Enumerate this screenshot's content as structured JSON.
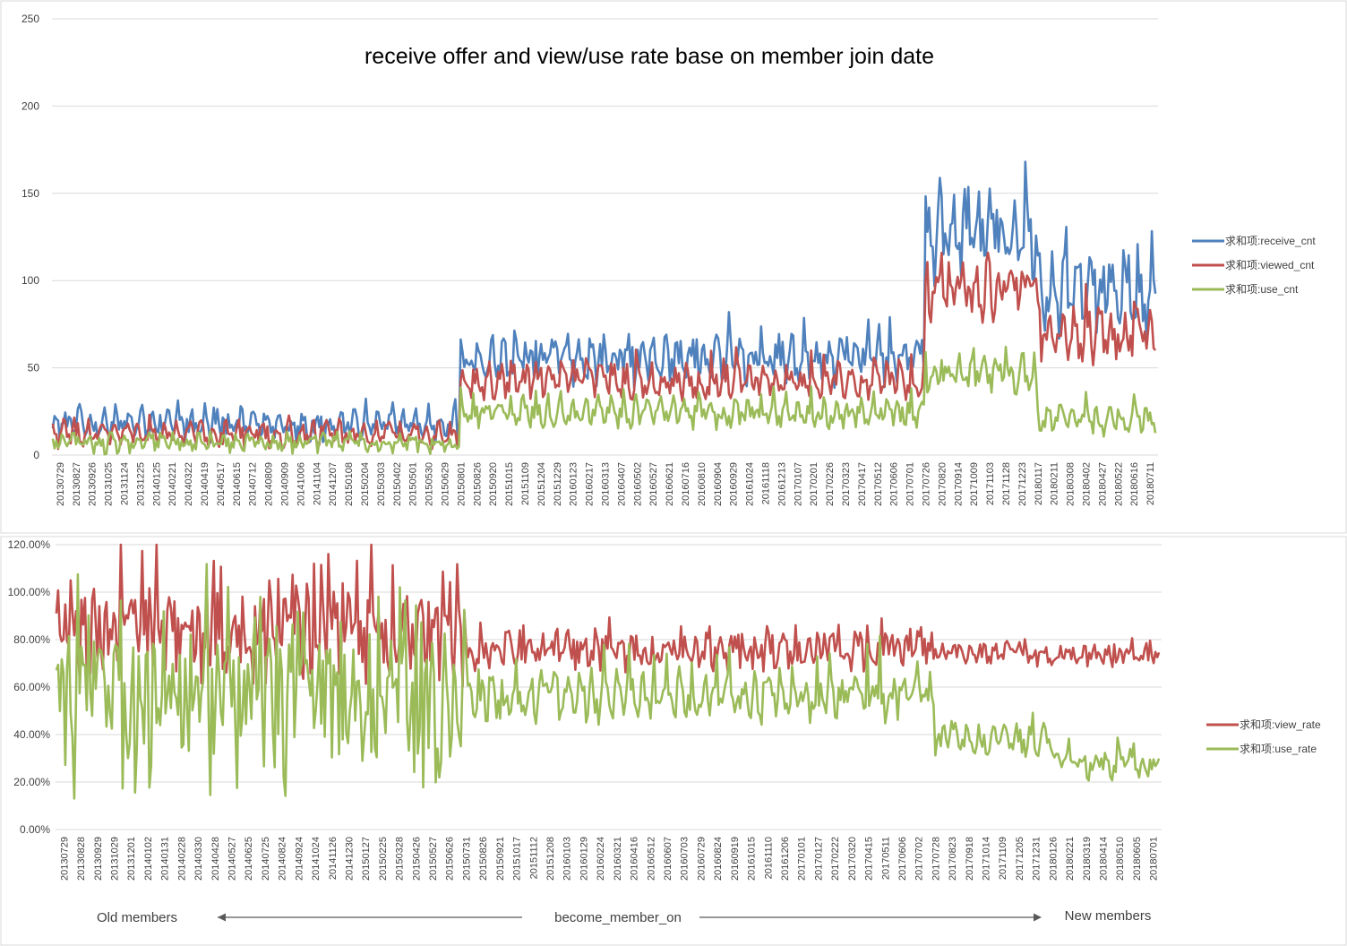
{
  "colors": {
    "receive": "#4f81bd",
    "viewed": "#c0504d",
    "use": "#9bbb59",
    "grid": "#d9d9d9",
    "text": "#404040"
  },
  "chart_data": [
    {
      "type": "line",
      "title": "receive offer and view/use rate base on member join date",
      "xlabel": "",
      "ylabel": "",
      "ylim": [
        0,
        250
      ],
      "yticks": [
        "0",
        "50",
        "100",
        "150",
        "200",
        "250"
      ],
      "grid": true,
      "legend_position": "right",
      "x_tick_labels": [
        "20130729",
        "20130827",
        "20130926",
        "20131025",
        "20131124",
        "20131225",
        "20140125",
        "20140221",
        "20140322",
        "20140419",
        "20140517",
        "20140615",
        "20140712",
        "20140809",
        "20140909",
        "20141006",
        "20141104",
        "20141207",
        "20150108",
        "20150204",
        "20150303",
        "20150402",
        "20150501",
        "20150530",
        "20150629",
        "20150801",
        "20150826",
        "20150920",
        "20151015",
        "20151109",
        "20151204",
        "20151229",
        "20160123",
        "20160217",
        "20160313",
        "20160407",
        "20160502",
        "20160527",
        "20160621",
        "20160716",
        "20160810",
        "20160904",
        "20160929",
        "20161024",
        "20161118",
        "20161213",
        "20170107",
        "20170201",
        "20170226",
        "20170323",
        "20170417",
        "20170512",
        "20170606",
        "20170701",
        "20170726",
        "20170820",
        "20170914",
        "20171009",
        "20171103",
        "20171128",
        "20171223",
        "20180117",
        "20180211",
        "20180308",
        "20180402",
        "20180427",
        "20180522",
        "20180616",
        "20180711"
      ],
      "series": [
        {
          "name": "求和项:receive_cnt",
          "color_key": "receive",
          "segments": [
            {
              "start_tick": "20130729",
              "end_tick": "20150801",
              "base": 17,
              "amplitude": 5,
              "noise": 6,
              "spike_every": 5,
              "spike": 9
            },
            {
              "start_tick": "20150801",
              "end_tick": "20170726",
              "base": 54,
              "amplitude": 7,
              "noise": 9,
              "spike_every": 6,
              "spike": 20
            },
            {
              "start_tick": "20170726",
              "end_tick": "20180117",
              "base": 125,
              "amplitude": 14,
              "noise": 16,
              "spike_every": 8,
              "spike": 45
            },
            {
              "start_tick": "20180117",
              "end_tick": "20180711",
              "base": 92,
              "amplitude": 12,
              "noise": 14,
              "spike_every": 8,
              "spike": 30
            }
          ]
        },
        {
          "name": "求和项:viewed_cnt",
          "color_key": "viewed",
          "segments": [
            {
              "start_tick": "20130729",
              "end_tick": "20150801",
              "base": 12,
              "amplitude": 4,
              "noise": 5,
              "spike_every": 6,
              "spike": 6
            },
            {
              "start_tick": "20150801",
              "end_tick": "20170726",
              "base": 42,
              "amplitude": 5,
              "noise": 7,
              "spike_every": 7,
              "spike": 12
            },
            {
              "start_tick": "20170726",
              "end_tick": "20180117",
              "base": 95,
              "amplitude": 10,
              "noise": 12,
              "spike_every": 9,
              "spike": 30
            },
            {
              "start_tick": "20180117",
              "end_tick": "20180711",
              "base": 68,
              "amplitude": 9,
              "noise": 11,
              "spike_every": 9,
              "spike": 20
            }
          ]
        },
        {
          "name": "求和项:use_cnt",
          "color_key": "use",
          "segments": [
            {
              "start_tick": "20130729",
              "end_tick": "20150801",
              "base": 7,
              "amplitude": 3,
              "noise": 4,
              "spike_every": 7,
              "spike": 5
            },
            {
              "start_tick": "20150801",
              "end_tick": "20170726",
              "base": 24,
              "amplitude": 4,
              "noise": 6,
              "spike_every": 7,
              "spike": 9
            },
            {
              "start_tick": "20170726",
              "end_tick": "20180117",
              "base": 46,
              "amplitude": 6,
              "noise": 8,
              "spike_every": 9,
              "spike": 18
            },
            {
              "start_tick": "20180117",
              "end_tick": "20180711",
              "base": 20,
              "amplitude": 4,
              "noise": 6,
              "spike_every": 9,
              "spike": 12
            }
          ]
        }
      ]
    },
    {
      "type": "line",
      "title": "",
      "xlabel": "become_member_on",
      "ylabel": "",
      "ylim": [
        0,
        1.2
      ],
      "yticks": [
        "0.00%",
        "20.00%",
        "40.00%",
        "60.00%",
        "80.00%",
        "100.00%",
        "120.00%"
      ],
      "grid": true,
      "legend_position": "right",
      "x_tick_labels": [
        "20130729",
        "20130828",
        "20130929",
        "20131029",
        "20131201",
        "20140102",
        "20140131",
        "20140228",
        "20140330",
        "20140428",
        "20140527",
        "20140625",
        "20140725",
        "20140824",
        "20140924",
        "20141024",
        "20141126",
        "20141230",
        "20150127",
        "20150225",
        "20150328",
        "20150426",
        "20150527",
        "20150626",
        "20150731",
        "20150826",
        "20150921",
        "20151017",
        "20151112",
        "20151208",
        "20160103",
        "20160129",
        "20160224",
        "20160321",
        "20160416",
        "20160512",
        "20160607",
        "20160703",
        "20160729",
        "20160824",
        "20160919",
        "20161015",
        "20161110",
        "20161206",
        "20170101",
        "20170127",
        "20170222",
        "20170320",
        "20170415",
        "20170511",
        "20170606",
        "20170702",
        "20170728",
        "20170823",
        "20170918",
        "20171014",
        "20171109",
        "20171205",
        "20171231",
        "20180126",
        "20180221",
        "20180319",
        "20180414",
        "20180510",
        "20180605",
        "20180701"
      ],
      "annotations": {
        "left": "Old members",
        "right": "New members",
        "center": "become_member_on"
      },
      "series": [
        {
          "name": "求和项:view_rate",
          "color_key": "viewed",
          "segments": [
            {
              "start_tick": "20130729",
              "end_tick": "20150731",
              "base": 0.82,
              "amplitude": 0.06,
              "noise": 0.18,
              "spike_every": 4,
              "spike": 0.3
            },
            {
              "start_tick": "20150731",
              "end_tick": "20170728",
              "base": 0.76,
              "amplitude": 0.03,
              "noise": 0.07,
              "spike_every": 8,
              "spike": 0.1
            },
            {
              "start_tick": "20170728",
              "end_tick": "20180701",
              "base": 0.74,
              "amplitude": 0.02,
              "noise": 0.04,
              "spike_every": 10,
              "spike": 0.07
            }
          ]
        },
        {
          "name": "求和项:use_rate",
          "color_key": "use",
          "segments": [
            {
              "start_tick": "20130729",
              "end_tick": "20150731",
              "base": 0.5,
              "amplitude": 0.08,
              "noise": 0.3,
              "spike_every": 3,
              "spike": 0.4
            },
            {
              "start_tick": "20150731",
              "end_tick": "20170728",
              "base": 0.56,
              "amplitude": 0.04,
              "noise": 0.08,
              "spike_every": 7,
              "spike": 0.15
            },
            {
              "start_tick": "20170728",
              "end_tick": "20180126",
              "base": 0.38,
              "amplitude": 0.03,
              "noise": 0.05,
              "spike_every": 9,
              "spike": 0.1
            },
            {
              "start_tick": "20180126",
              "end_tick": "20180701",
              "base": 0.27,
              "amplitude": 0.03,
              "noise": 0.05,
              "spike_every": 9,
              "spike": 0.1
            }
          ]
        }
      ]
    }
  ]
}
